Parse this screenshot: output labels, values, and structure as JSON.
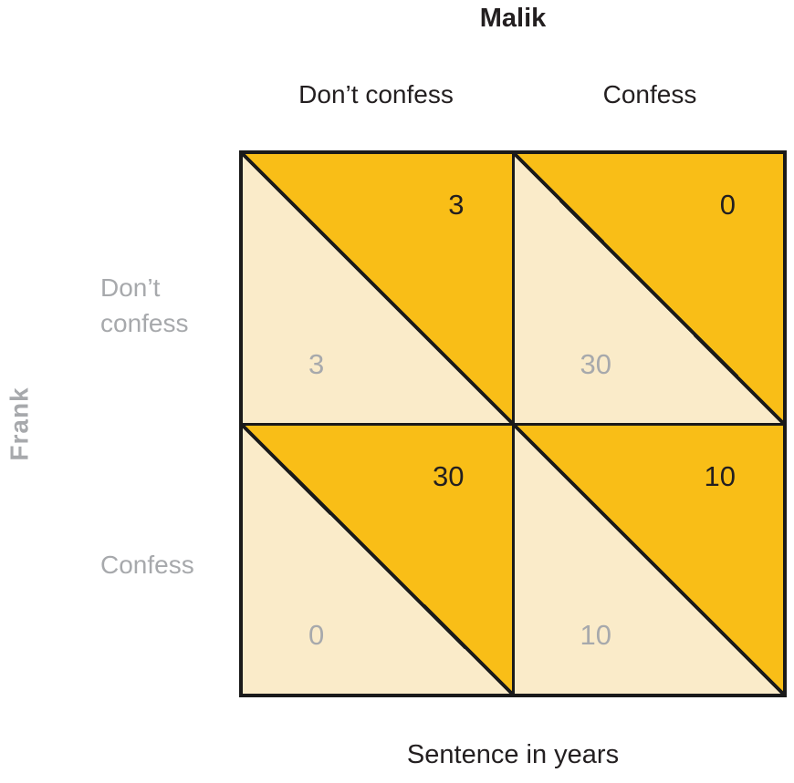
{
  "title": "Malik",
  "side_label": "Frank",
  "caption": "Sentence in years",
  "columns": [
    "Don’t confess",
    "Confess"
  ],
  "rows": [
    "Don’t confess",
    "Confess"
  ],
  "colors": {
    "orange": "#F9BE17",
    "cream": "#FAEBC9",
    "line": "#1A1A1A",
    "gray_text": "#A7A9AC",
    "dark_text": "#231F20"
  },
  "matrix": {
    "cells": [
      {
        "name": "frank-dont-confess-malik-dont-confess",
        "malik": "3",
        "frank": "3"
      },
      {
        "name": "frank-dont-confess-malik-confess",
        "malik": "0",
        "frank": "30"
      },
      {
        "name": "frank-confess-malik-dont-confess",
        "malik": "30",
        "frank": "0"
      },
      {
        "name": "frank-confess-malik-confess",
        "malik": "10",
        "frank": "10"
      }
    ]
  }
}
